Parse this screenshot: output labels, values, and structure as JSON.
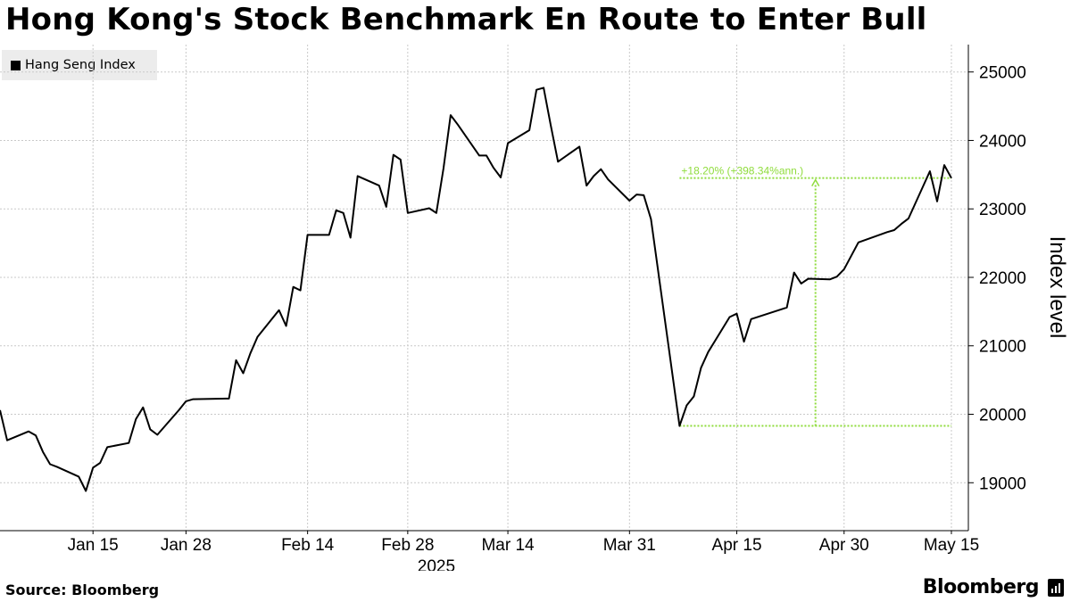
{
  "title": "Hong Kong's Stock Benchmark En Route to Enter Bull",
  "footer": {
    "source": "Source: Bloomberg",
    "brand": "Bloomberg"
  },
  "colors": {
    "line": "#000000",
    "annotation": "#8fdc3c",
    "grid": "#c9c9c9",
    "legend_bg": "#ececec"
  },
  "chart_data": {
    "type": "line",
    "title": "Hong Kong's Stock Benchmark En Route to Enter Bull",
    "ylabel": "Index level",
    "ylim": [
      18300,
      25400
    ],
    "yticks": [
      19000,
      20000,
      21000,
      22000,
      23000,
      24000,
      25000
    ],
    "xlim": [
      "2025-01-02",
      "2025-05-16"
    ],
    "xticks": [
      {
        "date": "2025-01-15",
        "label": "Jan 15"
      },
      {
        "date": "2025-01-28",
        "label": "Jan 28"
      },
      {
        "date": "2025-02-14",
        "label": "Feb 14"
      },
      {
        "date": "2025-02-28",
        "label": "Feb 28"
      },
      {
        "date": "2025-03-14",
        "label": "Mar 14"
      },
      {
        "date": "2025-03-31",
        "label": "Mar 31"
      },
      {
        "date": "2025-04-15",
        "label": "Apr 15"
      },
      {
        "date": "2025-04-30",
        "label": "Apr 30"
      },
      {
        "date": "2025-05-15",
        "label": "May 15"
      }
    ],
    "year_label": "2025",
    "grid": true,
    "legend_position": "top-left",
    "series": [
      {
        "name": "Hang Seng Index",
        "color": "#000000",
        "points": [
          [
            "2025-01-02",
            20060
          ],
          [
            "2025-01-03",
            19620
          ],
          [
            "2025-01-06",
            19750
          ],
          [
            "2025-01-07",
            19690
          ],
          [
            "2025-01-08",
            19450
          ],
          [
            "2025-01-09",
            19270
          ],
          [
            "2025-01-10",
            19230
          ],
          [
            "2025-01-13",
            19090
          ],
          [
            "2025-01-14",
            18880
          ],
          [
            "2025-01-15",
            19220
          ],
          [
            "2025-01-16",
            19290
          ],
          [
            "2025-01-17",
            19520
          ],
          [
            "2025-01-20",
            19580
          ],
          [
            "2025-01-21",
            19930
          ],
          [
            "2025-01-22",
            20100
          ],
          [
            "2025-01-23",
            19780
          ],
          [
            "2025-01-24",
            19700
          ],
          [
            "2025-01-27",
            20060
          ],
          [
            "2025-01-28",
            20190
          ],
          [
            "2025-01-29",
            20220
          ],
          [
            "2025-02-03",
            20230
          ],
          [
            "2025-02-04",
            20790
          ],
          [
            "2025-02-05",
            20600
          ],
          [
            "2025-02-06",
            20890
          ],
          [
            "2025-02-07",
            21130
          ],
          [
            "2025-02-10",
            21520
          ],
          [
            "2025-02-11",
            21290
          ],
          [
            "2025-02-12",
            21860
          ],
          [
            "2025-02-13",
            21810
          ],
          [
            "2025-02-14",
            22620
          ],
          [
            "2025-02-17",
            22620
          ],
          [
            "2025-02-18",
            22980
          ],
          [
            "2025-02-19",
            22940
          ],
          [
            "2025-02-20",
            22580
          ],
          [
            "2025-02-21",
            23480
          ],
          [
            "2025-02-24",
            23340
          ],
          [
            "2025-02-25",
            23030
          ],
          [
            "2025-02-26",
            23790
          ],
          [
            "2025-02-27",
            23720
          ],
          [
            "2025-02-28",
            22940
          ],
          [
            "2025-03-03",
            23010
          ],
          [
            "2025-03-04",
            22940
          ],
          [
            "2025-03-05",
            23590
          ],
          [
            "2025-03-06",
            24370
          ],
          [
            "2025-03-07",
            24230
          ],
          [
            "2025-03-10",
            23780
          ],
          [
            "2025-03-11",
            23780
          ],
          [
            "2025-03-12",
            23600
          ],
          [
            "2025-03-13",
            23460
          ],
          [
            "2025-03-14",
            23960
          ],
          [
            "2025-03-17",
            24150
          ],
          [
            "2025-03-18",
            24740
          ],
          [
            "2025-03-19",
            24770
          ],
          [
            "2025-03-20",
            24220
          ],
          [
            "2025-03-21",
            23690
          ],
          [
            "2025-03-24",
            23910
          ],
          [
            "2025-03-25",
            23340
          ],
          [
            "2025-03-26",
            23480
          ],
          [
            "2025-03-27",
            23580
          ],
          [
            "2025-03-28",
            23430
          ],
          [
            "2025-03-31",
            23120
          ],
          [
            "2025-04-01",
            23210
          ],
          [
            "2025-04-02",
            23200
          ],
          [
            "2025-04-03",
            22850
          ],
          [
            "2025-04-07",
            19830
          ],
          [
            "2025-04-08",
            20130
          ],
          [
            "2025-04-09",
            20260
          ],
          [
            "2025-04-10",
            20680
          ],
          [
            "2025-04-11",
            20910
          ],
          [
            "2025-04-14",
            21420
          ],
          [
            "2025-04-15",
            21470
          ],
          [
            "2025-04-16",
            21060
          ],
          [
            "2025-04-17",
            21390
          ],
          [
            "2025-04-22",
            21560
          ],
          [
            "2025-04-23",
            22070
          ],
          [
            "2025-04-24",
            21910
          ],
          [
            "2025-04-25",
            21980
          ],
          [
            "2025-04-28",
            21970
          ],
          [
            "2025-04-29",
            22010
          ],
          [
            "2025-04-30",
            22120
          ],
          [
            "2025-05-02",
            22510
          ],
          [
            "2025-05-06",
            22660
          ],
          [
            "2025-05-07",
            22690
          ],
          [
            "2025-05-08",
            22780
          ],
          [
            "2025-05-09",
            22860
          ],
          [
            "2025-05-12",
            23550
          ],
          [
            "2025-05-13",
            23110
          ],
          [
            "2025-05-14",
            23640
          ],
          [
            "2025-05-15",
            23450
          ]
        ]
      }
    ],
    "annotations": [
      {
        "text": "+18.20% (+398.34%ann.)",
        "from": {
          "date": "2025-04-07",
          "value": 19830
        },
        "to": {
          "date": "2025-05-15",
          "value": 23450
        },
        "color": "#8fdc3c"
      }
    ]
  }
}
